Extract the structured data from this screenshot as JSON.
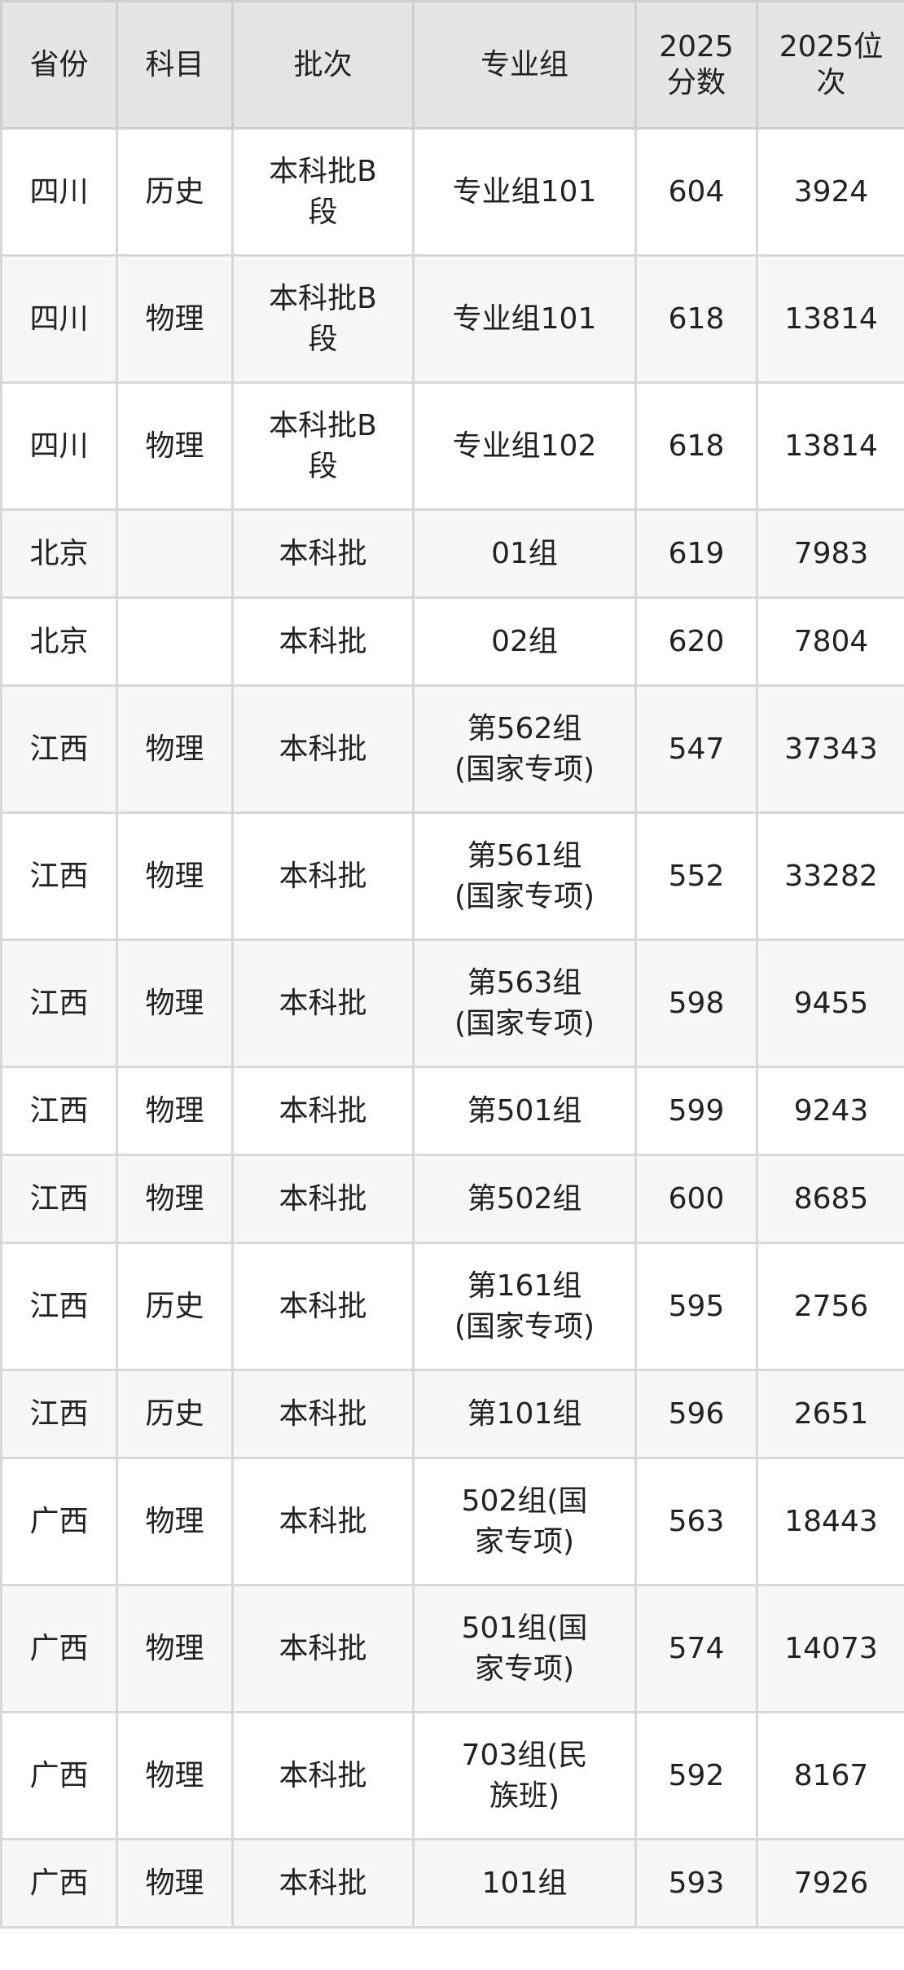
{
  "table": {
    "headers": [
      "省份",
      "科目",
      "批次",
      "专业组",
      "2025分数",
      "2025位次"
    ],
    "rows": [
      [
        "四川",
        "历史",
        "本科批B段",
        "专业组101",
        "604",
        "3924"
      ],
      [
        "四川",
        "物理",
        "本科批B段",
        "专业组101",
        "618",
        "13814"
      ],
      [
        "四川",
        "物理",
        "本科批B段",
        "专业组102",
        "618",
        "13814"
      ],
      [
        "北京",
        "",
        "本科批",
        "01组",
        "619",
        "7983"
      ],
      [
        "北京",
        "",
        "本科批",
        "02组",
        "620",
        "7804"
      ],
      [
        "江西",
        "物理",
        "本科批",
        "第562组(国家专项)",
        "547",
        "37343"
      ],
      [
        "江西",
        "物理",
        "本科批",
        "第561组(国家专项)",
        "552",
        "33282"
      ],
      [
        "江西",
        "物理",
        "本科批",
        "第563组(国家专项)",
        "598",
        "9455"
      ],
      [
        "江西",
        "物理",
        "本科批",
        "第501组",
        "599",
        "9243"
      ],
      [
        "江西",
        "物理",
        "本科批",
        "第502组",
        "600",
        "8685"
      ],
      [
        "江西",
        "历史",
        "本科批",
        "第161组(国家专项)",
        "595",
        "2756"
      ],
      [
        "江西",
        "历史",
        "本科批",
        "第101组",
        "596",
        "2651"
      ],
      [
        "广西",
        "物理",
        "本科批",
        "502组(国家专项)",
        "563",
        "18443"
      ],
      [
        "广西",
        "物理",
        "本科批",
        "501组(国家专项)",
        "574",
        "14073"
      ],
      [
        "广西",
        "物理",
        "本科批",
        "703组(民族班)",
        "592",
        "8167"
      ],
      [
        "广西",
        "物理",
        "本科批",
        "101组",
        "593",
        "7926"
      ]
    ]
  }
}
